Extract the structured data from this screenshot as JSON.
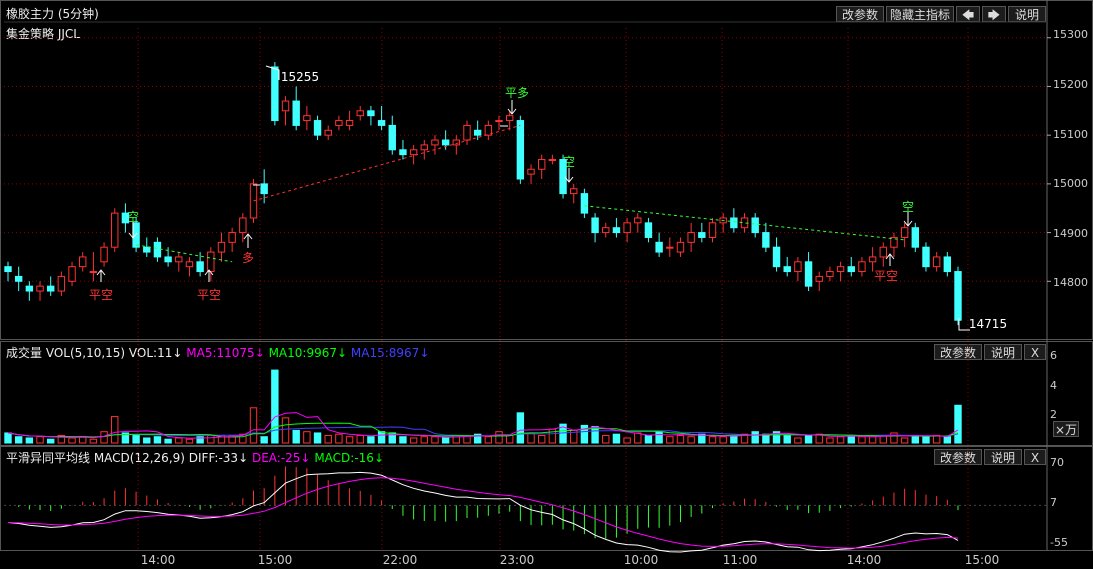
{
  "header": {
    "title": "橡胶主力 (5分钟)",
    "strategy": "集金策略 JJCL",
    "buttons": {
      "params": "改参数",
      "hide_main": "隐藏主指标",
      "left": "🡄",
      "right": "🡆",
      "help": "说明"
    }
  },
  "main_chart": {
    "y_ticks": [
      "15300",
      "15200",
      "15100",
      "15000",
      "14900",
      "14800"
    ],
    "high_label": "15255",
    "low_label": "14715",
    "signals": [
      {
        "text": "平空",
        "color": "#ff3333"
      },
      {
        "text": "空",
        "color": "#33ff33"
      },
      {
        "text": "平空",
        "color": "#ff3333"
      },
      {
        "text": "多",
        "color": "#ff3333"
      },
      {
        "text": "平多",
        "color": "#33ff33"
      },
      {
        "text": "空",
        "color": "#33ff33"
      },
      {
        "text": "平空",
        "color": "#ff3333"
      },
      {
        "text": "空",
        "color": "#33ff33"
      }
    ]
  },
  "volume_panel": {
    "name": "成交量 VOL(5,10,15) VOL:11",
    "ma5": "MA5:11075",
    "ma10": "MA10:9967",
    "ma15": "MA15:8967",
    "arrow": "↓",
    "y_ticks": [
      "6",
      "4",
      "2"
    ],
    "unit_button": "×万",
    "buttons": {
      "params": "改参数",
      "help": "说明",
      "close": "X"
    }
  },
  "macd_panel": {
    "name": "平滑异同平均线 MACD(12,26,9) DIFF:-33",
    "dea": "DEA:-25",
    "macd": "MACD:-16",
    "arrow": "↓",
    "y_ticks": [
      "70",
      "7",
      "-55"
    ],
    "buttons": {
      "params": "改参数",
      "help": "说明",
      "close": "X"
    }
  },
  "x_axis": {
    "ticks": [
      "14:00",
      "15:00",
      "22:00",
      "23:00",
      "10:00",
      "11:00",
      "14:00",
      "15:00"
    ]
  },
  "colors": {
    "up": "#ff3232",
    "down": "#40ffff",
    "ma5": "#ff00ff",
    "ma10": "#00ff00",
    "ma15": "#4040ff",
    "grid": "#8b0000",
    "signal_up": "#ff3333",
    "signal_down": "#33ff33"
  },
  "chart_data": [
    {
      "type": "candlestick",
      "title": "橡胶主力 (5分钟)",
      "ylim": [
        14700,
        15320
      ],
      "x_ticks": [
        "14:00",
        "15:00",
        "22:00",
        "23:00",
        "10:00",
        "11:00",
        "14:00",
        "15:00"
      ],
      "ohlc_approx": [
        [
          14830,
          14840,
          14800,
          14820
        ],
        [
          14810,
          14830,
          14780,
          14800
        ],
        [
          14790,
          14800,
          14760,
          14780
        ],
        [
          14780,
          14800,
          14760,
          14790
        ],
        [
          14790,
          14810,
          14770,
          14780
        ],
        [
          14780,
          14820,
          14770,
          14810
        ],
        [
          14800,
          14840,
          14790,
          14830
        ],
        [
          14830,
          14860,
          14820,
          14850
        ],
        [
          14820,
          14860,
          14800,
          14820
        ],
        [
          14840,
          14880,
          14830,
          14870
        ],
        [
          14870,
          14950,
          14860,
          14940
        ],
        [
          14940,
          14960,
          14900,
          14920
        ],
        [
          14920,
          14930,
          14860,
          14870
        ],
        [
          14870,
          14890,
          14850,
          14860
        ],
        [
          14880,
          14890,
          14840,
          14850
        ],
        [
          14850,
          14870,
          14830,
          14840
        ],
        [
          14840,
          14860,
          14820,
          14850
        ],
        [
          14830,
          14850,
          14810,
          14840
        ],
        [
          14840,
          14860,
          14810,
          14820
        ],
        [
          14820,
          14870,
          14800,
          14860
        ],
        [
          14860,
          14900,
          14840,
          14880
        ],
        [
          14880,
          14910,
          14860,
          14900
        ],
        [
          14900,
          14940,
          14880,
          14930
        ],
        [
          14930,
          15010,
          14920,
          15000
        ],
        [
          15000,
          15030,
          14960,
          14980
        ],
        [
          15240,
          15250,
          15120,
          15130
        ],
        [
          15150,
          15180,
          15120,
          15170
        ],
        [
          15170,
          15200,
          15110,
          15120
        ],
        [
          15130,
          15160,
          15110,
          15140
        ],
        [
          15130,
          15140,
          15090,
          15100
        ],
        [
          15100,
          15120,
          15090,
          15110
        ],
        [
          15120,
          15140,
          15110,
          15130
        ],
        [
          15120,
          15150,
          15110,
          15130
        ],
        [
          15140,
          15160,
          15130,
          15150
        ],
        [
          15150,
          15160,
          15120,
          15140
        ],
        [
          15130,
          15160,
          15110,
          15120
        ],
        [
          15120,
          15140,
          15060,
          15070
        ],
        [
          15070,
          15090,
          15050,
          15060
        ],
        [
          15060,
          15080,
          15040,
          15070
        ],
        [
          15070,
          15090,
          15050,
          15080
        ],
        [
          15080,
          15100,
          15060,
          15090
        ],
        [
          15090,
          15110,
          15070,
          15080
        ],
        [
          15080,
          15100,
          15060,
          15090
        ],
        [
          15090,
          15130,
          15080,
          15120
        ],
        [
          15110,
          15130,
          15090,
          15100
        ],
        [
          15100,
          15130,
          15090,
          15120
        ],
        [
          15130,
          15140,
          15110,
          15130
        ],
        [
          15130,
          15150,
          15110,
          15140
        ],
        [
          15130,
          15140,
          15000,
          15010
        ],
        [
          15020,
          15040,
          15000,
          15030
        ],
        [
          15030,
          15060,
          15010,
          15050
        ],
        [
          15050,
          15060,
          15040,
          15050
        ],
        [
          15050,
          15060,
          14970,
          14980
        ],
        [
          14980,
          15000,
          14960,
          14990
        ],
        [
          14980,
          14990,
          14930,
          14940
        ],
        [
          14930,
          14940,
          14880,
          14900
        ],
        [
          14900,
          14920,
          14890,
          14910
        ],
        [
          14910,
          14930,
          14890,
          14900
        ],
        [
          14900,
          14930,
          14880,
          14920
        ],
        [
          14920,
          14940,
          14900,
          14930
        ],
        [
          14920,
          14930,
          14880,
          14890
        ],
        [
          14880,
          14900,
          14850,
          14860
        ],
        [
          14870,
          14890,
          14850,
          14870
        ],
        [
          14860,
          14890,
          14850,
          14880
        ],
        [
          14880,
          14920,
          14860,
          14900
        ],
        [
          14900,
          14920,
          14880,
          14890
        ],
        [
          14890,
          14930,
          14880,
          14920
        ],
        [
          14920,
          14940,
          14900,
          14930
        ],
        [
          14930,
          14950,
          14900,
          14910
        ],
        [
          14910,
          14940,
          14900,
          14930
        ],
        [
          14930,
          14940,
          14890,
          14900
        ],
        [
          14900,
          14920,
          14860,
          14870
        ],
        [
          14870,
          14890,
          14820,
          14830
        ],
        [
          14830,
          14850,
          14810,
          14820
        ],
        [
          14820,
          14850,
          14800,
          14840
        ],
        [
          14840,
          14860,
          14780,
          14790
        ],
        [
          14800,
          14820,
          14780,
          14810
        ],
        [
          14810,
          14830,
          14800,
          14820
        ],
        [
          14820,
          14840,
          14800,
          14830
        ],
        [
          14830,
          14850,
          14810,
          14820
        ],
        [
          14820,
          14850,
          14810,
          14840
        ],
        [
          14840,
          14870,
          14820,
          14850
        ],
        [
          14850,
          14880,
          14830,
          14870
        ],
        [
          14870,
          14900,
          14850,
          14890
        ],
        [
          14890,
          14920,
          14870,
          14910
        ],
        [
          14910,
          14920,
          14860,
          14870
        ],
        [
          14870,
          14880,
          14820,
          14830
        ],
        [
          14830,
          14860,
          14820,
          14850
        ],
        [
          14850,
          14860,
          14810,
          14820
        ],
        [
          14820,
          14830,
          14710,
          14720
        ]
      ]
    },
    {
      "type": "bar",
      "title": "成交量 VOL(5,10,15)",
      "ylim": [
        0,
        7
      ],
      "values": [
        0.8,
        0.5,
        0.4,
        0.5,
        0.3,
        0.6,
        0.4,
        0.5,
        0.3,
        0.9,
        2.1,
        0.8,
        0.6,
        0.4,
        0.5,
        0.3,
        0.4,
        0.3,
        0.5,
        0.6,
        0.6,
        0.6,
        0.7,
        2.8,
        0.5,
        5.8,
        2.0,
        1.0,
        0.9,
        0.8,
        0.6,
        0.7,
        0.5,
        0.6,
        0.5,
        0.9,
        0.8,
        0.5,
        0.4,
        0.5,
        0.5,
        0.4,
        0.6,
        0.6,
        0.7,
        0.5,
        0.9,
        0.6,
        2.4,
        0.8,
        0.6,
        1.1,
        1.5,
        1.0,
        1.4,
        1.3,
        0.6,
        0.7,
        0.4,
        0.8,
        0.6,
        0.9,
        0.5,
        0.6,
        0.5,
        0.7,
        0.5,
        0.5,
        0.6,
        0.7,
        0.9,
        0.7,
        0.9,
        0.6,
        0.4,
        0.6,
        0.7,
        0.4,
        0.5,
        0.6,
        0.5,
        0.5,
        0.6,
        0.8,
        0.4,
        0.6,
        0.5,
        0.6,
        0.5,
        3.0
      ],
      "series": [
        {
          "name": "MA5"
        },
        {
          "name": "MA10"
        },
        {
          "name": "MA15"
        }
      ]
    },
    {
      "type": "bar",
      "title": "MACD(12,26,9)",
      "ylim": [
        -60,
        75
      ],
      "series": [
        {
          "name": "DIFF"
        },
        {
          "name": "DEA"
        },
        {
          "name": "MACD"
        }
      ]
    }
  ]
}
